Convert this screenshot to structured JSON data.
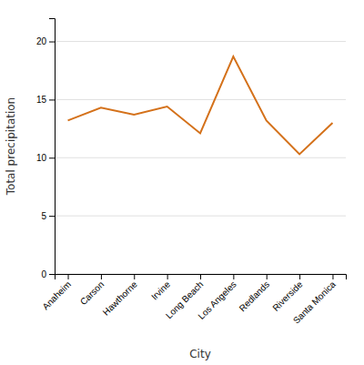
{
  "chart_data": {
    "type": "line",
    "categories": [
      "Anaheim",
      "Carson",
      "Hawthorne",
      "Irvine",
      "Long Beach",
      "Los Angeles",
      "Redlands",
      "Riverside",
      "Santa Monica"
    ],
    "values": [
      13.2,
      14.3,
      13.7,
      14.4,
      12.1,
      18.7,
      13.2,
      10.3,
      13.0
    ],
    "color": "#D4711A",
    "xlabel": "City",
    "ylabel": "Total precipitation",
    "ylim": [
      0,
      22
    ],
    "yticks": [
      0,
      5,
      10,
      15,
      20
    ],
    "grid": true
  }
}
